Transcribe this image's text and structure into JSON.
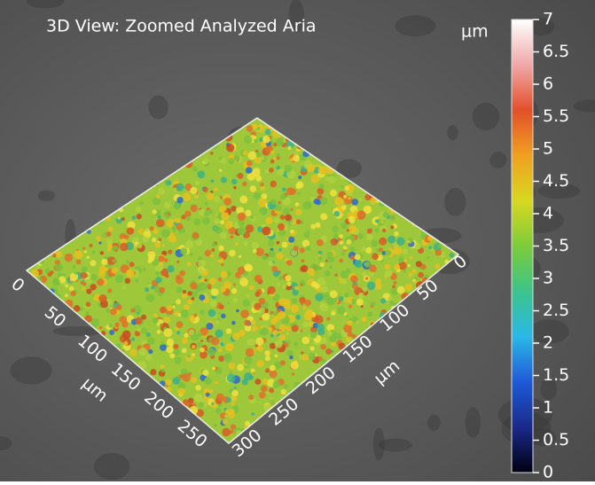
{
  "title": "3D View: Zoomed Analyzed Aria",
  "colorbar": {
    "unit": "µm",
    "ticks": [
      0,
      0.5,
      1,
      1.5,
      2,
      2.5,
      3,
      3.5,
      4,
      4.5,
      5,
      5.5,
      6,
      6.5,
      7
    ]
  },
  "front_axis": {
    "unit": "µm",
    "ticks": [
      0,
      50,
      100,
      150,
      200,
      250
    ]
  },
  "right_axis": {
    "unit": "µm",
    "ticks": [
      0,
      50,
      100,
      150,
      200,
      250,
      300
    ]
  }
}
